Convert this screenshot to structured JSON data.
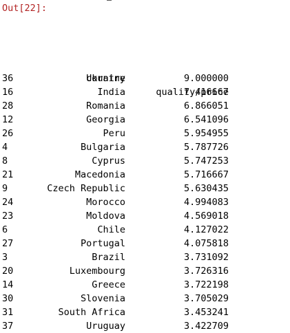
{
  "prompt": {
    "label": "Out[",
    "number": "22",
    "suffix": "]:"
  },
  "dataframe": {
    "columns": [
      "country",
      "quality/price"
    ],
    "rows": [
      {
        "index": "36",
        "country": "Ukraine",
        "value": "9.000000"
      },
      {
        "index": "16",
        "country": "India",
        "value": "7.416667"
      },
      {
        "index": "28",
        "country": "Romania",
        "value": "6.866051"
      },
      {
        "index": "12",
        "country": "Georgia",
        "value": "6.541096"
      },
      {
        "index": "26",
        "country": "Peru",
        "value": "5.954955"
      },
      {
        "index": "4",
        "country": "Bulgaria",
        "value": "5.787726"
      },
      {
        "index": "8",
        "country": "Cyprus",
        "value": "5.747253"
      },
      {
        "index": "21",
        "country": "Macedonia",
        "value": "5.716667"
      },
      {
        "index": "9",
        "country": "Czech Republic",
        "value": "5.630435"
      },
      {
        "index": "24",
        "country": "Morocco",
        "value": "4.994083"
      },
      {
        "index": "23",
        "country": "Moldova",
        "value": "4.569018"
      },
      {
        "index": "6",
        "country": "Chile",
        "value": "4.127022"
      },
      {
        "index": "27",
        "country": "Portugal",
        "value": "4.075818"
      },
      {
        "index": "3",
        "country": "Brazil",
        "value": "3.731092"
      },
      {
        "index": "20",
        "country": "Luxembourg",
        "value": "3.726316"
      },
      {
        "index": "14",
        "country": "Greece",
        "value": "3.722198"
      },
      {
        "index": "30",
        "country": "Slovenia",
        "value": "3.705029"
      },
      {
        "index": "31",
        "country": "South Africa",
        "value": "3.453241"
      },
      {
        "index": "37",
        "country": "Uruguay",
        "value": "3.422709"
      }
    ]
  }
}
